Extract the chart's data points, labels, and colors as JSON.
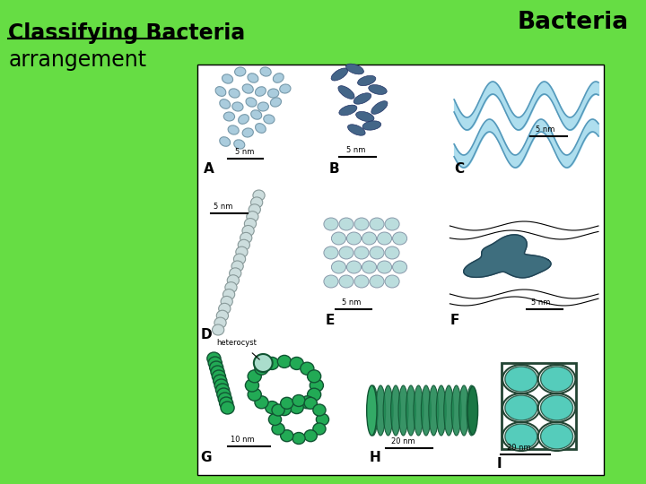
{
  "bg_color": "#66dd44",
  "panel_color": "#ffffff",
  "title_left": "Classifying Bacteria",
  "subtitle_left": "arrangement",
  "title_right": "Bacteria",
  "title_fontsize": 17,
  "subtitle_fontsize": 17,
  "col_A": "#aaccdd",
  "col_A_edge": "#7799aa",
  "col_B": "#446688",
  "col_B_edge": "#223366",
  "col_C_fill": "#aaddee",
  "col_C_out": "#5599bb",
  "col_D_fill": "#ccdddd",
  "col_D_edge": "#889999",
  "col_E_fill": "#bbdddd",
  "col_E_edge": "#8899aa",
  "col_F_dark": "#336677",
  "col_F_edge": "#224455",
  "col_G": "#22aa55",
  "col_G_edge": "#115533",
  "col_G_hc": "#aaddcc",
  "col_H_main": "#228855",
  "col_H_edge": "#115533",
  "col_I_fill": "#55ccbb",
  "col_I_edge": "#224433"
}
